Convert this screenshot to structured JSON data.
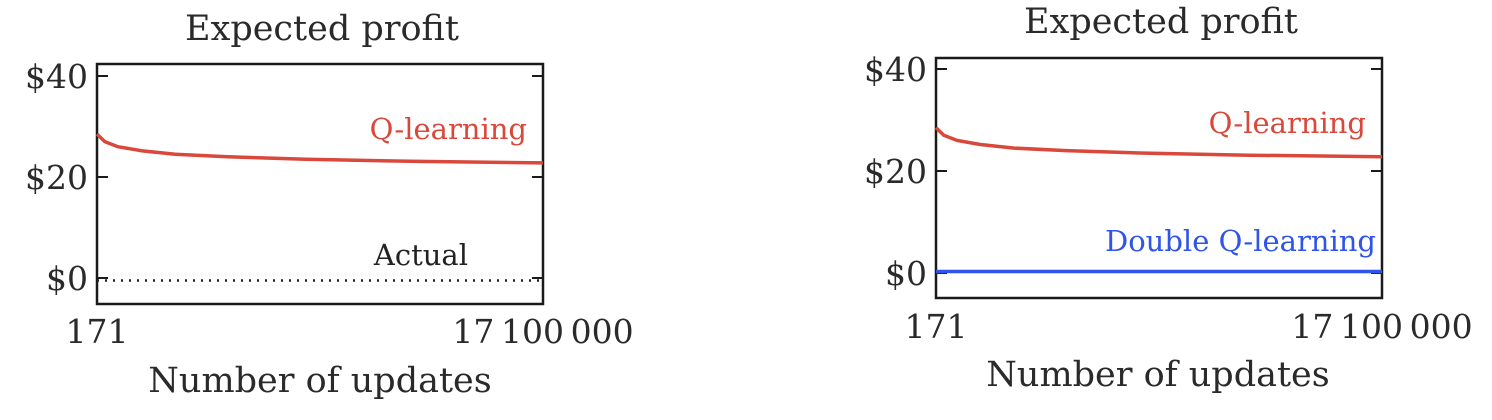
{
  "chart_data": [
    {
      "type": "line",
      "title": "Expected profit",
      "xlabel": "Number of updates",
      "ylabel": "",
      "x_ticks": [
        "171",
        "17 100 000"
      ],
      "x_range": [
        171,
        17100000
      ],
      "y_ticks": [
        "$0",
        "$20",
        "$40"
      ],
      "ylim": [
        -5,
        42
      ],
      "grid": false,
      "series": [
        {
          "name": "Q-learning",
          "style": "solid",
          "color": "#d9483b",
          "x": [
            171,
            300000,
            800000,
            1700000,
            3000000,
            5000000,
            8000000,
            12000000,
            17100000
          ],
          "values": [
            28.5,
            27.0,
            26.0,
            25.2,
            24.5,
            24.0,
            23.5,
            23.1,
            22.8
          ]
        },
        {
          "name": "Actual",
          "style": "dotted",
          "color": "#222222",
          "x": [
            171,
            17100000
          ],
          "values": [
            -0.5,
            -0.5
          ]
        }
      ]
    },
    {
      "type": "line",
      "title": "Expected profit",
      "xlabel": "Number of updates",
      "ylabel": "",
      "x_ticks": [
        "171",
        "17 100 000"
      ],
      "x_range": [
        171,
        17100000
      ],
      "y_ticks": [
        "$0",
        "$20",
        "$40"
      ],
      "ylim": [
        -5,
        42
      ],
      "grid": false,
      "series": [
        {
          "name": "Q-learning",
          "style": "solid",
          "color": "#d9483b",
          "x": [
            171,
            300000,
            800000,
            1700000,
            3000000,
            5000000,
            8000000,
            12000000,
            17100000
          ],
          "values": [
            28.5,
            27.0,
            26.0,
            25.2,
            24.5,
            24.0,
            23.5,
            23.1,
            22.8
          ]
        },
        {
          "name": "Double Q-learning",
          "style": "solid",
          "color": "#2f54e8",
          "x": [
            171,
            17100000
          ],
          "values": [
            0.3,
            0.3
          ]
        }
      ]
    }
  ]
}
